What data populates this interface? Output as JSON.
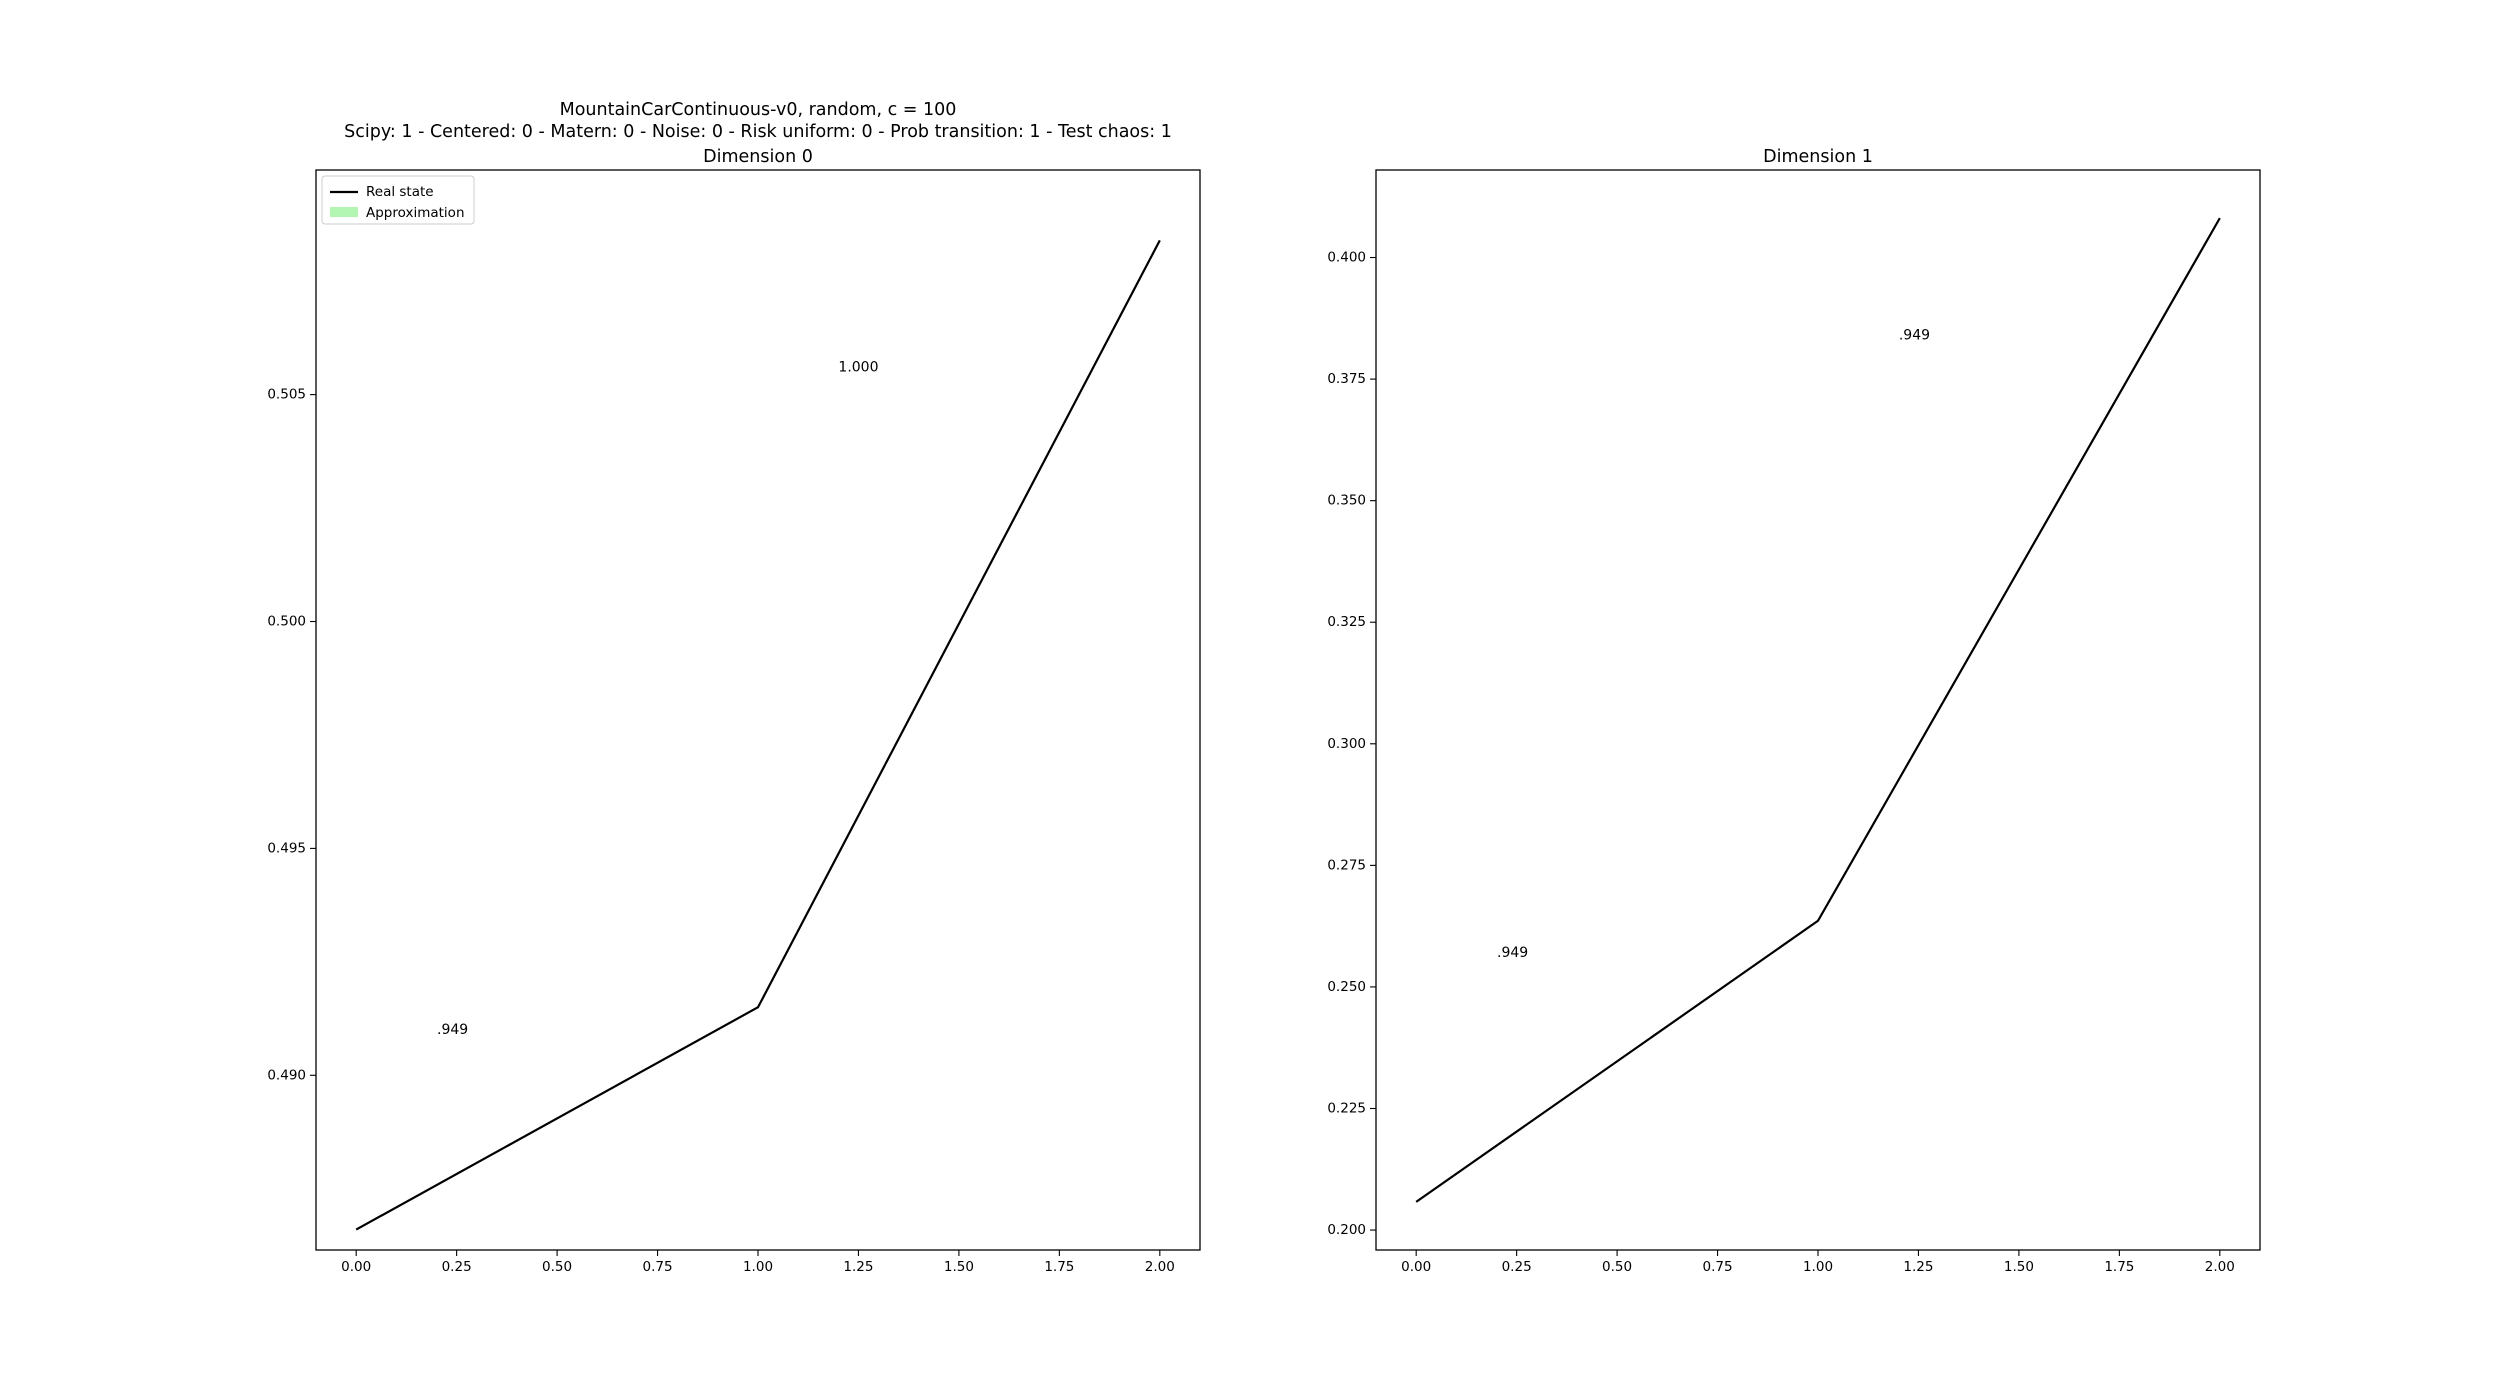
{
  "figure": {
    "title_line1": "MountainCarContinuous-v0, random, c = 100",
    "title_line2": "Scipy: 1 - Centered: 0 - Matern: 0 - Noise: 0 - Risk uniform: 0 - Prob transition: 1 - Test chaos: 1"
  },
  "legend": {
    "real_state_label": "Real state",
    "approximation_label": "Approximation",
    "real_state_color": "#000000",
    "approximation_color": "#b3f5b3"
  },
  "chart_data": [
    {
      "type": "line",
      "title": "Dimension 0",
      "series": [
        {
          "name": "Real state",
          "x": [
            0.0,
            1.0,
            2.0
          ],
          "y": [
            0.4866,
            0.4915,
            0.5084
          ]
        }
      ],
      "annotations": [
        {
          "text": ".949",
          "x": 0.24,
          "y": 0.491
        },
        {
          "text": "1.000",
          "x": 1.25,
          "y": 0.5056
        }
      ],
      "xticks": [
        "0.00",
        "0.25",
        "0.50",
        "0.75",
        "1.00",
        "1.25",
        "1.50",
        "1.75",
        "2.00"
      ],
      "yticks": [
        "0.490",
        "0.495",
        "0.500",
        "0.505"
      ],
      "xlim": [
        -0.1,
        2.1
      ],
      "ylim": [
        0.48615,
        0.50995
      ],
      "legend": "upper-left",
      "grid": false
    },
    {
      "type": "line",
      "title": "Dimension 1",
      "series": [
        {
          "name": "Real state",
          "x": [
            0.0,
            1.0,
            2.0
          ],
          "y": [
            0.2058,
            0.2636,
            0.4081
          ]
        }
      ],
      "annotations": [
        {
          "text": ".949",
          "x": 0.24,
          "y": 0.257
        },
        {
          "text": ".949",
          "x": 1.24,
          "y": 0.384
        }
      ],
      "xticks": [
        "0.00",
        "0.25",
        "0.50",
        "0.75",
        "1.00",
        "1.25",
        "1.50",
        "1.75",
        "2.00"
      ],
      "yticks": [
        "0.200",
        "0.225",
        "0.250",
        "0.275",
        "0.300",
        "0.325",
        "0.350",
        "0.375",
        "0.400"
      ],
      "xlim": [
        -0.1,
        2.1
      ],
      "ylim": [
        0.1959,
        0.418
      ],
      "grid": false
    }
  ]
}
